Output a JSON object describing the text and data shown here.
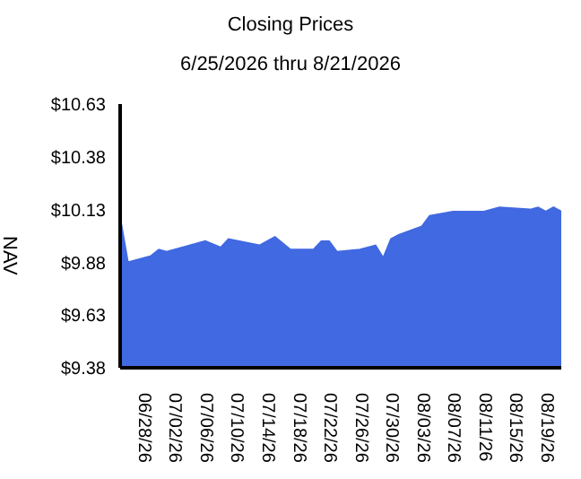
{
  "chart_data": {
    "type": "area",
    "title": "Closing Prices",
    "subtitle": "6/25/2026 thru 8/21/2026",
    "ylabel": "NAV",
    "x": [
      "2026-06-25",
      "2026-06-26",
      "2026-06-29",
      "2026-06-30",
      "2026-07-01",
      "2026-07-03",
      "2026-07-06",
      "2026-07-08",
      "2026-07-09",
      "2026-07-13",
      "2026-07-15",
      "2026-07-17",
      "2026-07-20",
      "2026-07-21",
      "2026-07-22",
      "2026-07-23",
      "2026-07-26",
      "2026-07-28",
      "2026-07-29",
      "2026-07-30",
      "2026-07-31",
      "2026-08-03",
      "2026-08-04",
      "2026-08-07",
      "2026-08-11",
      "2026-08-13",
      "2026-08-17",
      "2026-08-18",
      "2026-08-19",
      "2026-08-20",
      "2026-08-21"
    ],
    "values": [
      10.09,
      9.88,
      9.91,
      9.94,
      9.93,
      9.95,
      9.98,
      9.95,
      9.99,
      9.96,
      10.0,
      9.94,
      9.94,
      9.98,
      9.98,
      9.93,
      9.94,
      9.96,
      9.9,
      9.99,
      10.01,
      10.05,
      10.1,
      10.12,
      10.12,
      10.14,
      10.13,
      10.14,
      10.12,
      10.14,
      10.12
    ],
    "color": "#4169e1",
    "xlim": [
      "2026-06-25",
      "2026-08-21"
    ],
    "xticks": [
      {
        "value": "2026-06-28",
        "label": "06/28/26"
      },
      {
        "value": "2026-07-02",
        "label": "07/02/26"
      },
      {
        "value": "2026-07-06",
        "label": "07/06/26"
      },
      {
        "value": "2026-07-10",
        "label": "07/10/26"
      },
      {
        "value": "2026-07-14",
        "label": "07/14/26"
      },
      {
        "value": "2026-07-18",
        "label": "07/18/26"
      },
      {
        "value": "2026-07-22",
        "label": "07/22/26"
      },
      {
        "value": "2026-07-26",
        "label": "07/26/26"
      },
      {
        "value": "2026-07-30",
        "label": "07/30/26"
      },
      {
        "value": "2026-08-03",
        "label": "08/03/26"
      },
      {
        "value": "2026-08-07",
        "label": "08/07/26"
      },
      {
        "value": "2026-08-11",
        "label": "08/11/26"
      },
      {
        "value": "2026-08-15",
        "label": "08/15/26"
      },
      {
        "value": "2026-08-19",
        "label": "08/19/26"
      }
    ],
    "ylim": [
      9.38,
      10.63
    ],
    "yticks": [
      {
        "value": 9.38,
        "label": "$9.38"
      },
      {
        "value": 9.63,
        "label": "$9.63"
      },
      {
        "value": 9.88,
        "label": "$9.88"
      },
      {
        "value": 10.13,
        "label": "$10.13"
      },
      {
        "value": 10.38,
        "label": "$10.38"
      },
      {
        "value": 10.63,
        "label": "$10.63"
      }
    ],
    "grid": false,
    "legend": false
  }
}
